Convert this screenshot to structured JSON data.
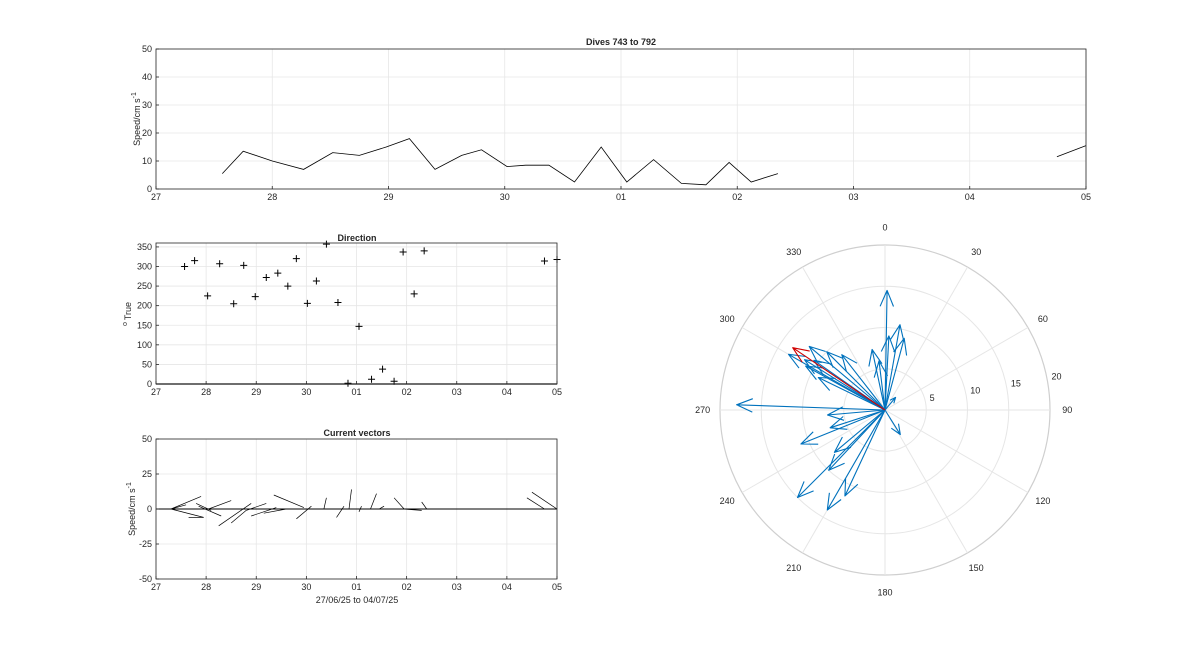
{
  "figure": {
    "background": "#ffffff",
    "axis_color": "#262626",
    "grid_color": "#e6e6e6",
    "line_color": "#000000",
    "vector_blue": "#0072BD",
    "vector_red": "#D00000"
  },
  "chart_data": [
    {
      "id": "speed",
      "type": "line",
      "title": "Dives 743 to 792",
      "xlabel": "",
      "ylabel": "Speed/cm s",
      "ylabel_exp": "-1",
      "xlim": [
        27,
        35
      ],
      "ylim": [
        0,
        50
      ],
      "xticks": [
        27,
        28,
        29,
        30,
        31,
        32,
        33,
        34,
        35
      ],
      "xtick_labels": [
        "27",
        "28",
        "29",
        "30",
        "01",
        "02",
        "03",
        "04",
        "05"
      ],
      "yticks": [
        0,
        10,
        20,
        30,
        40,
        50
      ],
      "grid": true,
      "segments": [
        [
          [
            27.57,
            5.5
          ],
          [
            27.75,
            13.5
          ],
          [
            28.0,
            10.0
          ],
          [
            28.27,
            7.0
          ],
          [
            28.52,
            13.0
          ],
          [
            28.75,
            12.0
          ],
          [
            28.98,
            15.0
          ],
          [
            29.18,
            18.0
          ],
          [
            29.4,
            7.0
          ],
          [
            29.63,
            12.0
          ],
          [
            29.8,
            14.0
          ],
          [
            30.02,
            8.0
          ],
          [
            30.18,
            8.5
          ],
          [
            30.38,
            8.5
          ],
          [
            30.6,
            2.5
          ],
          [
            30.83,
            15.0
          ],
          [
            31.05,
            2.5
          ],
          [
            31.28,
            10.5
          ],
          [
            31.52,
            2.0
          ],
          [
            31.73,
            1.5
          ],
          [
            31.93,
            9.5
          ],
          [
            32.12,
            2.5
          ],
          [
            32.35,
            5.5
          ]
        ],
        [
          [
            34.75,
            11.5
          ],
          [
            35.0,
            15.5
          ]
        ]
      ]
    },
    {
      "id": "direction",
      "type": "scatter",
      "title": "Direction",
      "xlabel": "",
      "ylabel": "True",
      "ylabel_prefix": "o",
      "xlim": [
        27,
        35
      ],
      "ylim": [
        0,
        360
      ],
      "xticks": [
        27,
        28,
        29,
        30,
        31,
        32,
        33,
        34,
        35
      ],
      "xtick_labels": [
        "27",
        "28",
        "29",
        "30",
        "01",
        "02",
        "03",
        "04",
        "05"
      ],
      "yticks": [
        0,
        50,
        100,
        150,
        200,
        250,
        300,
        350
      ],
      "grid": true,
      "marker": "+",
      "points": [
        [
          27.57,
          300
        ],
        [
          27.77,
          315
        ],
        [
          28.03,
          225
        ],
        [
          28.27,
          307
        ],
        [
          28.55,
          205
        ],
        [
          28.75,
          303
        ],
        [
          28.98,
          223
        ],
        [
          29.2,
          272
        ],
        [
          29.43,
          283
        ],
        [
          29.63,
          250
        ],
        [
          29.8,
          320
        ],
        [
          30.02,
          206
        ],
        [
          30.2,
          263
        ],
        [
          30.4,
          357
        ],
        [
          30.63,
          208
        ],
        [
          30.83,
          2
        ],
        [
          31.05,
          147
        ],
        [
          31.3,
          12
        ],
        [
          31.52,
          38
        ],
        [
          31.75,
          7
        ],
        [
          31.93,
          337
        ],
        [
          32.15,
          230
        ],
        [
          32.35,
          340
        ],
        [
          34.75,
          314
        ],
        [
          35.0,
          318
        ]
      ]
    },
    {
      "id": "vectors",
      "type": "line",
      "title": "Current vectors",
      "xlabel": "27/06/25 to 04/07/25",
      "ylabel": "Speed/cm s",
      "ylabel_exp": "-1",
      "xlim": [
        27,
        35
      ],
      "ylim": [
        -50,
        50
      ],
      "xticks": [
        27,
        28,
        29,
        30,
        31,
        32,
        33,
        34,
        35
      ],
      "xtick_labels": [
        "27",
        "28",
        "29",
        "30",
        "01",
        "02",
        "03",
        "04",
        "05"
      ],
      "yticks": [
        -50,
        -25,
        0,
        25,
        50
      ],
      "grid": true,
      "baseline": 0,
      "vectors": [
        [
          27.3,
          0,
          27.95,
          -6
        ],
        [
          27.3,
          0,
          27.6,
          3
        ],
        [
          27.3,
          0,
          27.9,
          9
        ],
        [
          27.65,
          -6,
          27.95,
          -6
        ],
        [
          27.8,
          4,
          28.1,
          -1
        ],
        [
          28.05,
          0,
          28.5,
          6
        ],
        [
          27.85,
          2,
          28.3,
          -5
        ],
        [
          28.25,
          -12,
          28.9,
          4
        ],
        [
          28.5,
          -10,
          28.8,
          -1
        ],
        [
          28.8,
          -1,
          29.2,
          4
        ],
        [
          28.9,
          -5,
          29.4,
          1
        ],
        [
          29.35,
          10,
          29.95,
          1
        ],
        [
          29.15,
          -3,
          29.6,
          0
        ],
        [
          29.8,
          -7,
          30.1,
          2
        ],
        [
          29.9,
          0,
          30.1,
          0
        ],
        [
          30.35,
          0,
          30.4,
          8
        ],
        [
          30.6,
          -6,
          30.75,
          2
        ],
        [
          30.85,
          0,
          30.9,
          14
        ],
        [
          31.05,
          -2,
          31.1,
          2
        ],
        [
          31.28,
          0,
          31.4,
          11
        ],
        [
          31.45,
          0,
          31.55,
          2
        ],
        [
          31.75,
          8,
          31.95,
          0
        ],
        [
          31.93,
          0,
          32.3,
          -1
        ],
        [
          32.3,
          5,
          32.4,
          0
        ],
        [
          34.4,
          8,
          34.75,
          0
        ],
        [
          34.5,
          12,
          35.0,
          0
        ]
      ]
    },
    {
      "id": "polar",
      "type": "scatter",
      "title": "",
      "xlabel": "",
      "ylabel": "",
      "kind": "compass",
      "rmax": 20,
      "rings": [
        5,
        10,
        15,
        20
      ],
      "ring_labels": [
        "5",
        "10",
        "15",
        "20"
      ],
      "angles": [
        0,
        30,
        60,
        90,
        120,
        150,
        180,
        210,
        240,
        270,
        300,
        330
      ],
      "angle_labels": [
        "0",
        "30",
        "60",
        "90",
        "120",
        "150",
        "180",
        "210",
        "240",
        "270",
        "300",
        "330"
      ],
      "vectors": [
        [
          300,
          13.5,
          "blue"
        ],
        [
          302,
          11.5,
          "blue"
        ],
        [
          305,
          10.5,
          "blue"
        ],
        [
          299,
          11.0,
          "blue"
        ],
        [
          296,
          9.0,
          "blue"
        ],
        [
          310,
          12.0,
          "blue"
        ],
        [
          315,
          10.0,
          "blue"
        ],
        [
          322,
          8.5,
          "blue"
        ],
        [
          348,
          7.5,
          "blue"
        ],
        [
          353,
          6.0,
          "blue"
        ],
        [
          1,
          14.5,
          "blue"
        ],
        [
          3,
          9.0,
          "blue"
        ],
        [
          10,
          10.5,
          "blue"
        ],
        [
          15,
          9.0,
          "blue"
        ],
        [
          40,
          2.0,
          "blue"
        ],
        [
          148,
          3.5,
          "blue"
        ],
        [
          205,
          11.5,
          "blue"
        ],
        [
          210,
          14.0,
          "blue"
        ],
        [
          225,
          15.0,
          "blue"
        ],
        [
          223,
          10.0,
          "blue"
        ],
        [
          230,
          8.0,
          "blue"
        ],
        [
          248,
          11.0,
          "blue"
        ],
        [
          252,
          7.0,
          "blue"
        ],
        [
          265,
          7.0,
          "blue"
        ],
        [
          272,
          18.0,
          "blue"
        ],
        [
          304,
          13.5,
          "red"
        ]
      ]
    }
  ]
}
